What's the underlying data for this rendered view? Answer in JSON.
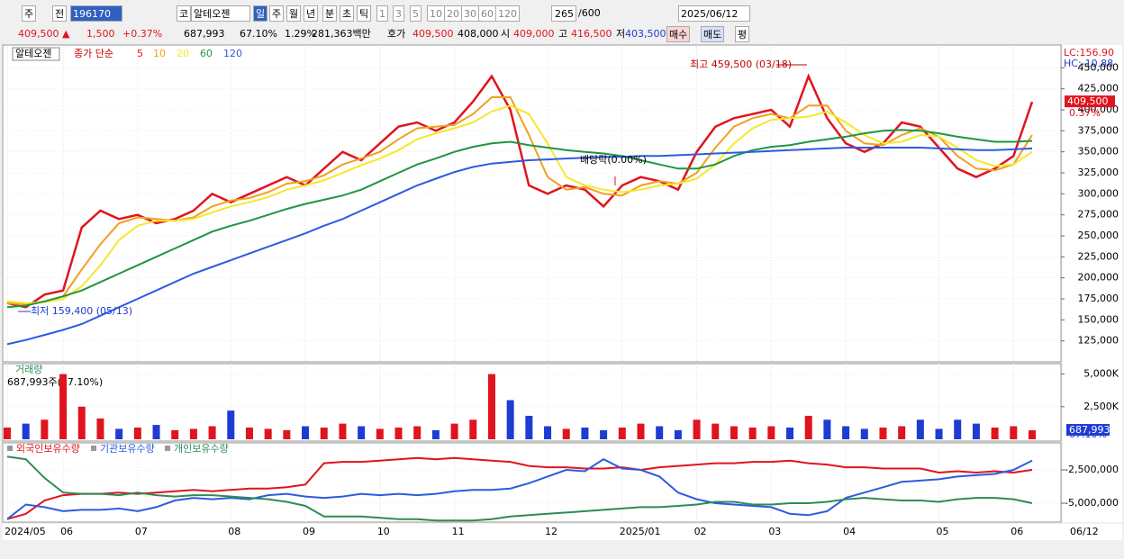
{
  "toolbar": {
    "row1": [
      "주",
      "전",
      "196170",
      "코",
      "알테오젠",
      "일",
      "주",
      "월",
      "년",
      "분",
      "초",
      "틱",
      "1",
      "3",
      "5",
      "10",
      "20",
      "30",
      "60",
      "120",
      "265",
      "/600",
      "2025/06/12"
    ],
    "row2": [
      "409,500 ▲",
      "1,500",
      "+0.37%",
      "687,993",
      "67.10%",
      "1.29%",
      "281,363백만",
      "호가",
      "409,500",
      "408,000",
      "시",
      "409,000",
      "고",
      "416,500",
      "저",
      "403,500",
      "매수",
      "매도",
      "평"
    ]
  },
  "chart_data": [
    {
      "type": "line",
      "name": "알테오젠",
      "legend_title": "종가 단순",
      "categories": [
        "2024/05",
        null,
        null,
        "06",
        null,
        null,
        null,
        "07",
        null,
        null,
        null,
        null,
        "08",
        null,
        null,
        null,
        "09",
        null,
        null,
        null,
        "10",
        null,
        null,
        null,
        "11",
        null,
        null,
        null,
        null,
        "12",
        null,
        null,
        null,
        "2025/01",
        null,
        null,
        null,
        "02",
        null,
        null,
        null,
        "03",
        null,
        null,
        null,
        "04",
        null,
        null,
        null,
        null,
        "05",
        null,
        null,
        null,
        "06",
        null
      ],
      "x_end_label": "06/12",
      "annotations": [
        "최고 459,500 (03/18)",
        "최저 159,400 (05/13)",
        "배당락(0.00%)"
      ],
      "indicators": [
        "LC:156.90",
        "HC:-10.88"
      ],
      "last_label": "409,500",
      "last_change": "0.37%",
      "ylim": [
        100000,
        475000
      ],
      "yticks": [
        {
          "value": 125000,
          "label": "125,000"
        },
        {
          "value": 150000,
          "label": "150,000"
        },
        {
          "value": 175000,
          "label": "175,000"
        },
        {
          "value": 200000,
          "label": "200,000"
        },
        {
          "value": 225000,
          "label": "225,000"
        },
        {
          "value": 250000,
          "label": "250,000"
        },
        {
          "value": 275000,
          "label": "275,000"
        },
        {
          "value": 300000,
          "label": "300,000"
        },
        {
          "value": 325000,
          "label": "325,000"
        },
        {
          "value": 350000,
          "label": "350,000"
        },
        {
          "value": 375000,
          "label": "375,000"
        },
        {
          "value": 400000,
          "label": "400,000"
        },
        {
          "value": 425000,
          "label": "425,000"
        },
        {
          "value": 450000,
          "label": "450,000"
        }
      ],
      "series": [
        {
          "name": "5",
          "color": "#e0141e",
          "values": [
            170000,
            165000,
            180000,
            185000,
            260000,
            280000,
            270000,
            275000,
            265000,
            270000,
            280000,
            300000,
            290000,
            300000,
            310000,
            320000,
            310000,
            330000,
            350000,
            340000,
            360000,
            380000,
            385000,
            375000,
            385000,
            410000,
            440000,
            400000,
            310000,
            300000,
            310000,
            305000,
            285000,
            310000,
            320000,
            315000,
            305000,
            350000,
            380000,
            390000,
            395000,
            400000,
            380000,
            440000,
            390000,
            360000,
            350000,
            360000,
            385000,
            380000,
            355000,
            330000,
            320000,
            330000,
            345000,
            409500
          ]
        },
        {
          "name": "10",
          "color": "#f0a020",
          "values": [
            170000,
            168000,
            172000,
            178000,
            210000,
            240000,
            265000,
            272000,
            270000,
            268000,
            272000,
            285000,
            292000,
            295000,
            302000,
            312000,
            315000,
            322000,
            335000,
            342000,
            350000,
            365000,
            378000,
            380000,
            382000,
            395000,
            415000,
            415000,
            370000,
            320000,
            305000,
            308000,
            300000,
            298000,
            310000,
            315000,
            312000,
            325000,
            355000,
            380000,
            390000,
            395000,
            390000,
            405000,
            405000,
            375000,
            360000,
            358000,
            370000,
            378000,
            368000,
            345000,
            330000,
            328000,
            335000,
            370000
          ]
        },
        {
          "name": "20",
          "color": "#f5e82a",
          "values": [
            172000,
            170000,
            171000,
            175000,
            190000,
            215000,
            245000,
            262000,
            268000,
            268000,
            270000,
            278000,
            285000,
            290000,
            296000,
            305000,
            310000,
            316000,
            325000,
            334000,
            342000,
            352000,
            365000,
            372000,
            378000,
            385000,
            398000,
            405000,
            395000,
            360000,
            320000,
            310000,
            305000,
            302000,
            305000,
            310000,
            312000,
            318000,
            335000,
            360000,
            378000,
            388000,
            390000,
            392000,
            398000,
            385000,
            370000,
            360000,
            362000,
            370000,
            368000,
            355000,
            340000,
            333000,
            335000,
            350000
          ]
        },
        {
          "name": "60",
          "color": "#1e9640",
          "values": [
            165000,
            167000,
            172000,
            178000,
            185000,
            195000,
            205000,
            215000,
            225000,
            235000,
            245000,
            255000,
            262000,
            268000,
            275000,
            282000,
            288000,
            293000,
            298000,
            305000,
            315000,
            325000,
            335000,
            342000,
            350000,
            356000,
            360000,
            362000,
            358000,
            355000,
            352000,
            350000,
            348000,
            345000,
            340000,
            335000,
            330000,
            330000,
            335000,
            345000,
            352000,
            356000,
            358000,
            362000,
            365000,
            368000,
            372000,
            375000,
            376000,
            375000,
            372000,
            368000,
            365000,
            362000,
            362000,
            363000
          ]
        },
        {
          "name": "120",
          "color": "#2d5be0",
          "values": [
            121000,
            126000,
            132000,
            138000,
            145000,
            155000,
            165000,
            175000,
            185000,
            195000,
            205000,
            213000,
            221000,
            229000,
            237000,
            245000,
            253000,
            262000,
            270000,
            280000,
            290000,
            300000,
            310000,
            318000,
            326000,
            332000,
            336000,
            338000,
            340000,
            341000,
            342000,
            343000,
            344000,
            344000,
            345000,
            345000,
            346000,
            347000,
            348000,
            349000,
            350000,
            351000,
            352000,
            353000,
            354000,
            355000,
            355000,
            355000,
            355000,
            355000,
            354000,
            353000,
            352000,
            352000,
            353000,
            354000
          ]
        }
      ]
    },
    {
      "type": "bar",
      "name": "거래량",
      "info": "687,993주(67.10%)",
      "last_label": "687,993",
      "last_ratio": "67.10%",
      "ylim": [
        0,
        5800000
      ],
      "yticks": [
        {
          "value": 2500000,
          "label": "2,500K"
        },
        {
          "value": 5000000,
          "label": "5,000K"
        }
      ],
      "up_color": "#e0141e",
      "down_color": "#1e3cd2",
      "values": [
        900000,
        1200000,
        1500000,
        5000000,
        2500000,
        1600000,
        800000,
        900000,
        1100000,
        700000,
        800000,
        1000000,
        2200000,
        900000,
        800000,
        700000,
        1000000,
        900000,
        1200000,
        1000000,
        800000,
        900000,
        1000000,
        700000,
        1200000,
        1500000,
        5000000,
        3000000,
        1800000,
        1000000,
        800000,
        900000,
        700000,
        900000,
        1200000,
        1000000,
        700000,
        1500000,
        1200000,
        1000000,
        900000,
        1000000,
        900000,
        1800000,
        1500000,
        1000000,
        800000,
        900000,
        1000000,
        1500000,
        800000,
        1500000,
        1200000,
        900000,
        1000000,
        687993
      ]
    },
    {
      "type": "line",
      "ylim": [
        -6420000,
        -470000
      ],
      "yticks": [
        {
          "value": -2500000,
          "label": "-2,500,000"
        },
        {
          "value": -5000000,
          "label": "-5,000,000"
        }
      ],
      "series": [
        {
          "name": "외국인보유수량",
          "color": "#e0141e",
          "values": [
            -6200000,
            -5800000,
            -4800000,
            -4400000,
            -4300000,
            -4300000,
            -4200000,
            -4300000,
            -4200000,
            -4100000,
            -4000000,
            -4100000,
            -4000000,
            -3900000,
            -3900000,
            -3800000,
            -3600000,
            -2000000,
            -1900000,
            -1900000,
            -1800000,
            -1700000,
            -1600000,
            -1700000,
            -1600000,
            -1700000,
            -1800000,
            -1900000,
            -2200000,
            -2300000,
            -2300000,
            -2400000,
            -2400000,
            -2300000,
            -2500000,
            -2300000,
            -2200000,
            -2100000,
            -2000000,
            -2000000,
            -1900000,
            -1900000,
            -1800000,
            -2000000,
            -2100000,
            -2300000,
            -2300000,
            -2400000,
            -2400000,
            -2400000,
            -2700000,
            -2600000,
            -2700000,
            -2600000,
            -2700000,
            -2500000
          ]
        },
        {
          "name": "기관보유수량",
          "color": "#2d5be0",
          "values": [
            -6200000,
            -5100000,
            -5300000,
            -5600000,
            -5500000,
            -5500000,
            -5400000,
            -5600000,
            -5300000,
            -4800000,
            -4600000,
            -4700000,
            -4600000,
            -4700000,
            -4400000,
            -4300000,
            -4500000,
            -4600000,
            -4500000,
            -4300000,
            -4400000,
            -4300000,
            -4400000,
            -4300000,
            -4100000,
            -4000000,
            -4000000,
            -3900000,
            -3500000,
            -3000000,
            -2500000,
            -2600000,
            -1700000,
            -2400000,
            -2500000,
            -3000000,
            -4200000,
            -4700000,
            -5000000,
            -5100000,
            -5200000,
            -5300000,
            -5800000,
            -5900000,
            -5600000,
            -4600000,
            -4200000,
            -3800000,
            -3400000,
            -3300000,
            -3200000,
            -3000000,
            -2900000,
            -2800000,
            -2500000,
            -1800000
          ]
        },
        {
          "name": "개인보유수량",
          "color": "#2e8b57",
          "values": [
            -1500000,
            -1700000,
            -3100000,
            -4200000,
            -4300000,
            -4300000,
            -4400000,
            -4200000,
            -4400000,
            -4500000,
            -4400000,
            -4400000,
            -4500000,
            -4600000,
            -4700000,
            -4900000,
            -5200000,
            -6000000,
            -6000000,
            -6000000,
            -6100000,
            -6200000,
            -6200000,
            -6300000,
            -6300000,
            -6300000,
            -6200000,
            -6000000,
            -5900000,
            -5800000,
            -5700000,
            -5600000,
            -5500000,
            -5400000,
            -5300000,
            -5300000,
            -5200000,
            -5100000,
            -4900000,
            -4900000,
            -5100000,
            -5100000,
            -5000000,
            -5000000,
            -4900000,
            -4700000,
            -4600000,
            -4700000,
            -4800000,
            -4800000,
            -4900000,
            -4700000,
            -4600000,
            -4600000,
            -4700000,
            -5000000
          ]
        }
      ]
    }
  ]
}
